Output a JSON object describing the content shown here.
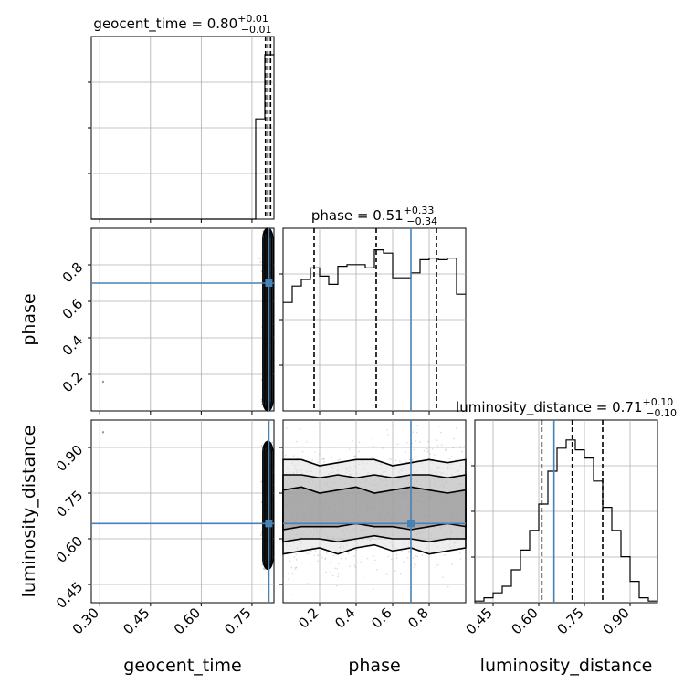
{
  "chart_data": {
    "type": "corner",
    "parameters": [
      "geocent_time",
      "phase",
      "luminosity_distance"
    ],
    "truth": {
      "geocent_time": 0.8,
      "phase": 0.7,
      "luminosity_distance": 0.65
    },
    "colors": {
      "truth": "#4682b4",
      "hist": "#000000",
      "grid": "#b0b0b0",
      "contour": "#000000"
    },
    "grid": true,
    "ranges": {
      "geocent_time": [
        0.275,
        0.815
      ],
      "phase": [
        0.0,
        1.0
      ],
      "luminosity_distance": [
        0.39,
        0.99
      ]
    },
    "x_ticks": {
      "geocent_time": [
        "0.30",
        "0.45",
        "0.60",
        "0.75"
      ],
      "phase": [
        "0.2",
        "0.4",
        "0.6",
        "0.8"
      ],
      "luminosity_distance": [
        "0.45",
        "0.60",
        "0.75",
        "0.90"
      ]
    },
    "y_ticks": {
      "phase": [
        "0.2",
        "0.4",
        "0.6",
        "0.8"
      ],
      "luminosity_distance": [
        "0.45",
        "0.60",
        "0.75",
        "0.90"
      ]
    },
    "titles": {
      "geocent_time": {
        "name": "geocent_time",
        "median": "0.80",
        "plus": "+0.01",
        "minus": "−0.01"
      },
      "phase": {
        "name": "phase",
        "median": "0.51",
        "plus": "+0.33",
        "minus": "−0.34"
      },
      "luminosity_distance": {
        "name": "luminosity_distance",
        "median": "0.71",
        "plus": "+0.10",
        "minus": "−0.10"
      }
    },
    "quantiles": {
      "geocent_time": [
        0.79,
        0.797,
        0.805
      ],
      "phase": [
        0.17,
        0.51,
        0.84
      ],
      "luminosity_distance": [
        0.61,
        0.71,
        0.81
      ]
    },
    "histograms": {
      "geocent_time": {
        "edges": [
          0.275,
          0.302,
          0.329,
          0.356,
          0.383,
          0.41,
          0.437,
          0.464,
          0.491,
          0.518,
          0.545,
          0.572,
          0.599,
          0.626,
          0.653,
          0.68,
          0.707,
          0.734,
          0.761,
          0.788,
          0.815
        ],
        "counts": [
          0,
          0,
          0,
          0,
          0,
          0,
          0,
          0,
          0,
          0,
          0,
          0,
          0,
          0,
          0,
          0,
          0,
          0,
          0.61,
          1.0
        ]
      },
      "phase": {
        "edges": [
          0.0,
          0.05,
          0.1,
          0.15,
          0.2,
          0.25,
          0.3,
          0.35,
          0.4,
          0.45,
          0.5,
          0.55,
          0.6,
          0.65,
          0.7,
          0.75,
          0.8,
          0.85,
          0.9,
          0.95,
          1.0
        ],
        "counts": [
          0.66,
          0.76,
          0.8,
          0.87,
          0.82,
          0.77,
          0.88,
          0.89,
          0.89,
          0.87,
          0.98,
          0.96,
          0.81,
          0.81,
          0.84,
          0.92,
          0.93,
          0.92,
          0.93,
          0.71
        ]
      },
      "luminosity_distance": {
        "edges": [
          0.39,
          0.42,
          0.45,
          0.48,
          0.51,
          0.54,
          0.57,
          0.6,
          0.63,
          0.66,
          0.69,
          0.72,
          0.75,
          0.78,
          0.81,
          0.84,
          0.87,
          0.9,
          0.93,
          0.96,
          0.99
        ],
        "counts": [
          0.01,
          0.03,
          0.06,
          0.1,
          0.2,
          0.32,
          0.44,
          0.6,
          0.8,
          0.94,
          0.99,
          0.93,
          0.88,
          0.74,
          0.58,
          0.44,
          0.28,
          0.13,
          0.03,
          0.01
        ]
      }
    },
    "contours_2d": {
      "phase_vs_geocent_time": {
        "x_center": 0.797,
        "x_halfwidths": [
          0.003,
          0.007,
          0.011,
          0.015
        ],
        "y_range": [
          0.0,
          1.0
        ]
      },
      "luminosity_distance_vs_geocent_time": {
        "x_center": 0.797,
        "x_halfwidths": [
          0.003,
          0.007,
          0.011,
          0.015
        ],
        "y_range": [
          0.5,
          0.92
        ]
      },
      "luminosity_distance_vs_phase": {
        "levels": [
          {
            "lower": [
              0.55,
              0.56,
              0.57,
              0.55,
              0.57,
              0.58,
              0.56,
              0.57,
              0.55,
              0.56,
              0.57
            ],
            "upper": [
              0.86,
              0.86,
              0.84,
              0.85,
              0.86,
              0.86,
              0.84,
              0.85,
              0.86,
              0.85,
              0.86
            ]
          },
          {
            "lower": [
              0.59,
              0.6,
              0.6,
              0.59,
              0.6,
              0.61,
              0.6,
              0.6,
              0.59,
              0.6,
              0.6
            ],
            "upper": [
              0.81,
              0.81,
              0.8,
              0.81,
              0.8,
              0.81,
              0.8,
              0.81,
              0.81,
              0.8,
              0.81
            ]
          },
          {
            "lower": [
              0.63,
              0.64,
              0.64,
              0.64,
              0.65,
              0.64,
              0.64,
              0.63,
              0.64,
              0.65,
              0.64
            ],
            "upper": [
              0.76,
              0.77,
              0.75,
              0.76,
              0.77,
              0.75,
              0.76,
              0.77,
              0.76,
              0.75,
              0.76
            ]
          }
        ]
      }
    }
  }
}
